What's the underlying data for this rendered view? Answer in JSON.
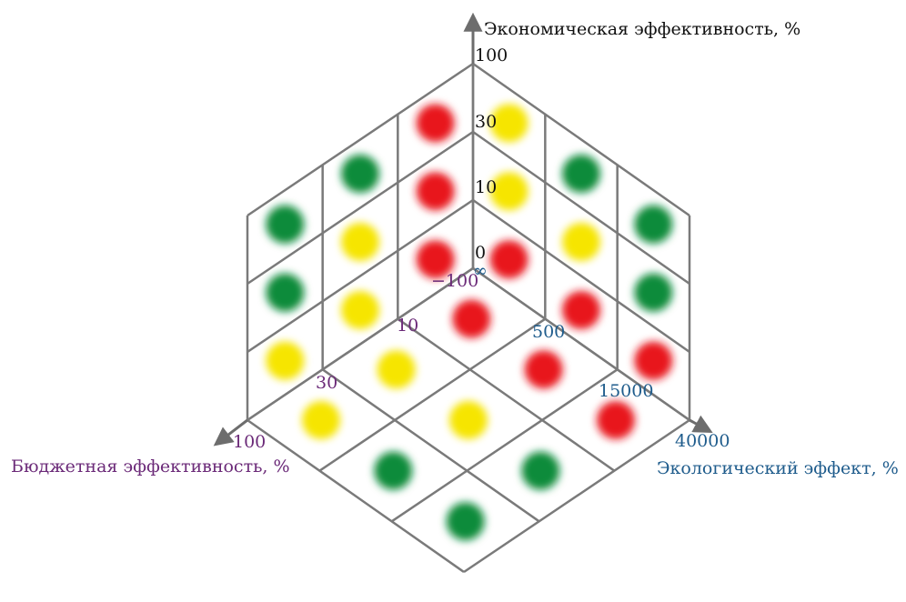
{
  "vertical_axis": {
    "title": "Экономическая эффективность, %",
    "ticks": [
      "100",
      "30",
      "10",
      "0"
    ]
  },
  "left_axis": {
    "title": "Бюджетная эффективность, %",
    "ticks": [
      "−100",
      "10",
      "30",
      "100"
    ]
  },
  "right_axis": {
    "title": "Экологический эффект, %",
    "ticks": [
      "∞",
      "500",
      "15000",
      "40000"
    ]
  },
  "colors": {
    "red": "#e8141c",
    "yellow": "#f6e500",
    "green": "#0e8b3a"
  },
  "faces": {
    "left_wall": [
      [
        "red",
        "red",
        "red"
      ],
      [
        "yellow",
        "yellow",
        "green"
      ],
      [
        "yellow",
        "green",
        "green"
      ]
    ],
    "right_wall": [
      [
        "red",
        "yellow",
        "yellow"
      ],
      [
        "red",
        "yellow",
        "green"
      ],
      [
        "red",
        "green",
        "green"
      ]
    ],
    "floor": [
      [
        "red",
        "red",
        "red"
      ],
      [
        "yellow",
        "yellow",
        "green"
      ],
      [
        "yellow",
        "green",
        "green"
      ]
    ]
  }
}
